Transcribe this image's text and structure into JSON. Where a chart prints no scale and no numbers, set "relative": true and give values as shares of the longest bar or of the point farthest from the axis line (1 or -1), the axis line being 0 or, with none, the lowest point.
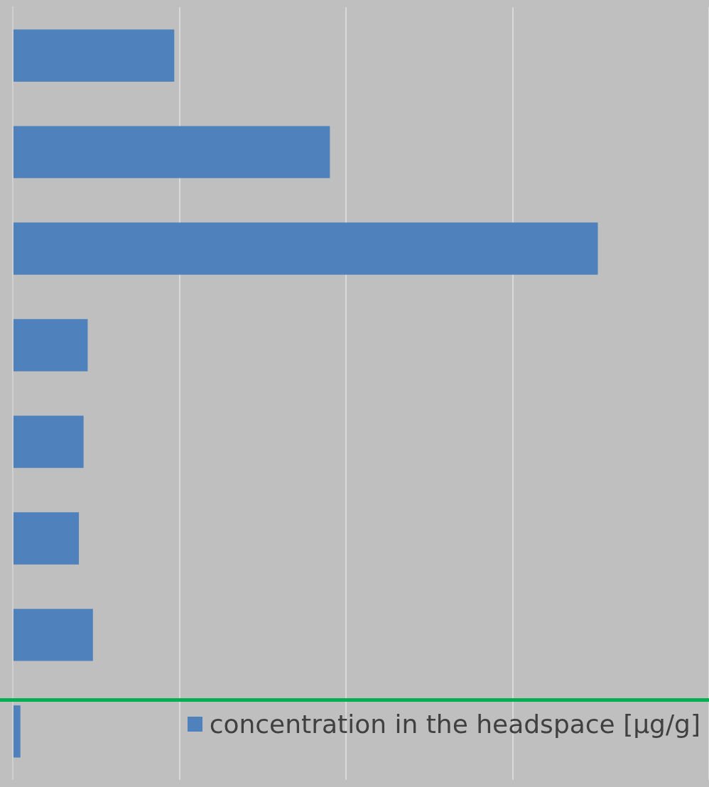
{
  "chart_data": {
    "type": "bar",
    "orientation": "horizontal",
    "relative": true,
    "categories": [
      null,
      null,
      null,
      null,
      null,
      null,
      null,
      null
    ],
    "series": [
      {
        "name": "concentration in the headspace [µg/g]",
        "color": "#4f81bd",
        "values": [
          0.276,
          0.542,
          1,
          0.128,
          0.121,
          0.113,
          0.137,
          0.013
        ]
      }
    ],
    "grid": "x",
    "legend": "bottom right"
  }
}
